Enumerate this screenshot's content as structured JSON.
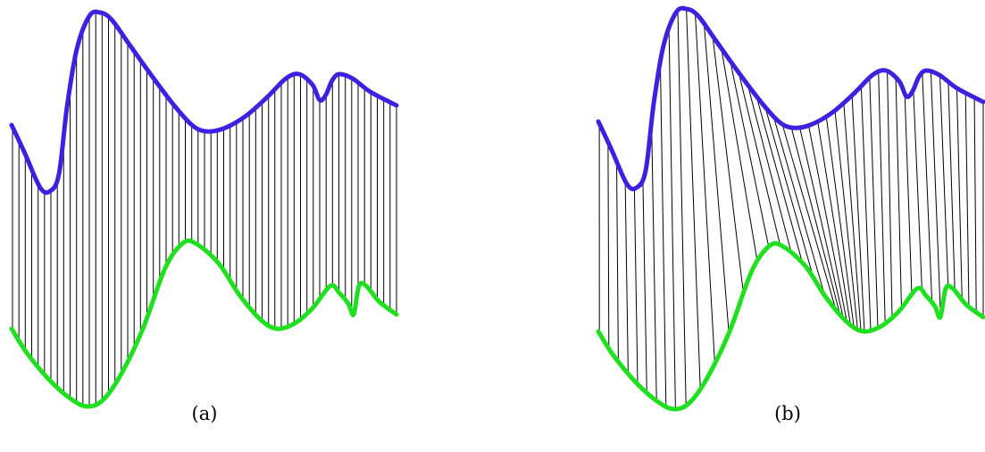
{
  "figure": {
    "panels": [
      {
        "id": "a",
        "caption": "(a)",
        "alignment": "linear"
      },
      {
        "id": "b",
        "caption": "(b)",
        "alignment": "warped"
      }
    ],
    "colors": {
      "upper_signal": "#4020e0",
      "lower_signal": "#1ee01e",
      "correspondence_lines": "#000000",
      "background": "#ffffff"
    }
  }
}
